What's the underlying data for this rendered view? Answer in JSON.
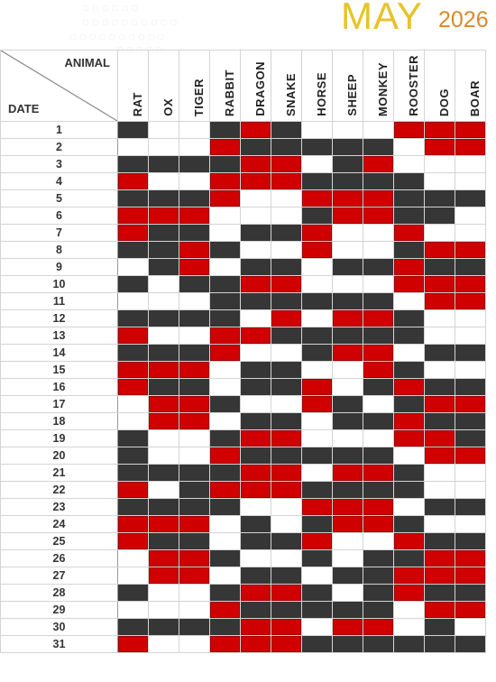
{
  "title": {
    "month": "MAY",
    "year": "2026"
  },
  "legend": {
    "lines": [
      "■ ■ ■  ■ ■ ■",
      "■ ■  ■ ■  ■ ■  ■ ■ ■ ■",
      "■ ■ ■ ■ ■     ■ ■ ■ ■ ■",
      "■ ■     ■ ■ ■"
    ]
  },
  "corner": {
    "animal_label": "ANIMAL",
    "date_label": "DATE"
  },
  "animals": [
    "RAT",
    "OX",
    "TIGER",
    "RABBIT",
    "DRAGON",
    "SNAKE",
    "HORSE",
    "SHEEP",
    "MONKEY",
    "ROOSTER",
    "DOG",
    "BOAR"
  ],
  "colors": {
    "black": "#363636",
    "white": "#ffffff",
    "red": "#d10000",
    "month": "#e8c22a",
    "year": "#d9892c"
  },
  "rows": [
    {
      "date": "1",
      "cells": "bwwbrbwwwrrr"
    },
    {
      "date": "2",
      "cells": "wwwrbbbbbwrr"
    },
    {
      "date": "3",
      "cells": "bbbbrrwbrwww"
    },
    {
      "date": "4",
      "cells": "rwwrrrbbbbww"
    },
    {
      "date": "5",
      "cells": "bbbrwwrrrbbb"
    },
    {
      "date": "6",
      "cells": "rrrwwwbrrbbw"
    },
    {
      "date": "7",
      "cells": "rbbwbbrwwrww"
    },
    {
      "date": "8",
      "cells": "bbrbwwrwwbrr"
    },
    {
      "date": "9",
      "cells": "wbrwbbwbbrbb"
    },
    {
      "date": "10",
      "cells": "bwbbrrwwwrrr"
    },
    {
      "date": "11",
      "cells": "wwwbbbbbbwrr"
    },
    {
      "date": "12",
      "cells": "bbbbwrwrrbww"
    },
    {
      "date": "13",
      "cells": "rwwrrbbbbbww"
    },
    {
      "date": "14",
      "cells": "bbbrwwbrrwbb"
    },
    {
      "date": "15",
      "cells": "rrrwbbwwrbww"
    },
    {
      "date": "16",
      "cells": "rbbwbbrwbrbb"
    },
    {
      "date": "17",
      "cells": "wrrbwwrbwbrr"
    },
    {
      "date": "18",
      "cells": "wrrwbbwbbrbb"
    },
    {
      "date": "19",
      "cells": "bwwbrrwwwrrb"
    },
    {
      "date": "20",
      "cells": "bwwrbbbbbwrr"
    },
    {
      "date": "21",
      "cells": "bbbbrrwrrbww"
    },
    {
      "date": "22",
      "cells": "rwbrrrbbbbww"
    },
    {
      "date": "23",
      "cells": "bbbbwwrrrwbb"
    },
    {
      "date": "24",
      "cells": "rrrwbwbrrbww"
    },
    {
      "date": "25",
      "cells": "rbbwbbrwwrbb"
    },
    {
      "date": "26",
      "cells": "wrrbwwbwbbrr"
    },
    {
      "date": "27",
      "cells": "wrrwbbwbbrrr"
    },
    {
      "date": "28",
      "cells": "bwwbrrbwbrbb"
    },
    {
      "date": "29",
      "cells": "wwwrbbbbbwrr"
    },
    {
      "date": "30",
      "cells": "bbbbrrwrrwbw"
    },
    {
      "date": "31",
      "cells": "rwwrrrbbbbbb"
    }
  ]
}
